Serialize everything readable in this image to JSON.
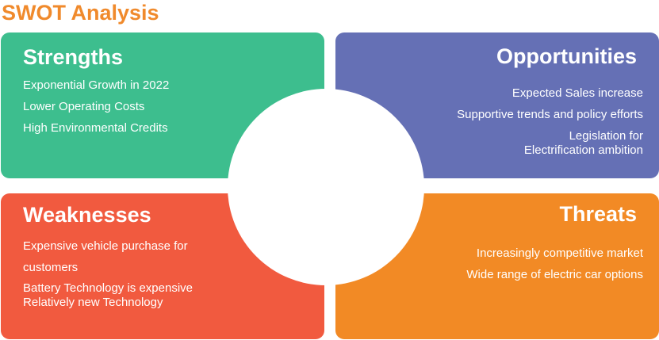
{
  "title": "SWOT Analysis",
  "colors": {
    "title": "#F08A2C",
    "strengths": "#3DBE8E",
    "opportunities": "#6570B5",
    "weaknesses": "#F15A3F",
    "threats": "#F28A25"
  },
  "quadrants": {
    "strengths": {
      "heading": "Strengths",
      "items": [
        "Exponential Growth in 2022",
        "Lower Operating Costs",
        "High Environmental Credits"
      ]
    },
    "opportunities": {
      "heading": "Opportunities",
      "items": [
        "Expected Sales increase",
        "Supportive trends and policy efforts",
        "Legislation for Electrification ambition"
      ]
    },
    "weaknesses": {
      "heading": "Weaknesses",
      "items": [
        "Expensive vehicle purchase for customers",
        "Battery Technology is expensive",
        "Relatively new Technology"
      ]
    },
    "threats": {
      "heading": "Threats",
      "items": [
        "Increasingly competitive market",
        "Wide range of electric car options"
      ]
    }
  }
}
